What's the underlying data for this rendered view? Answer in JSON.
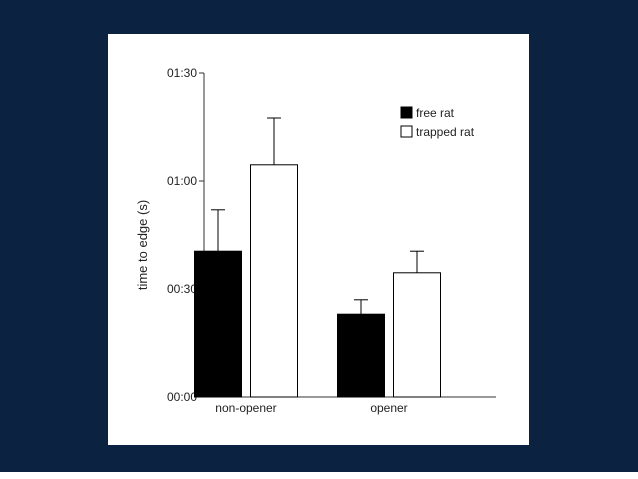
{
  "chart_data": {
    "type": "bar",
    "title": "",
    "xlabel": "",
    "ylabel": "time to edge (s)",
    "categories": [
      "non-opener",
      "opener"
    ],
    "yticks": [
      {
        "value": 0,
        "label": "00:00"
      },
      {
        "value": 30,
        "label": "00:30"
      },
      {
        "value": 60,
        "label": "01:00"
      },
      {
        "value": 90,
        "label": "01:30"
      }
    ],
    "ylim": [
      0,
      90
    ],
    "series": [
      {
        "name": "free rat",
        "values": [
          40.5,
          23
        ],
        "errors": [
          11.5,
          4
        ],
        "color": "#000000"
      },
      {
        "name": "trapped rat",
        "values": [
          64.5,
          34.5
        ],
        "errors": [
          13,
          6
        ],
        "color": "#ffffff"
      }
    ],
    "legend_position": "top-right",
    "grid": false
  }
}
